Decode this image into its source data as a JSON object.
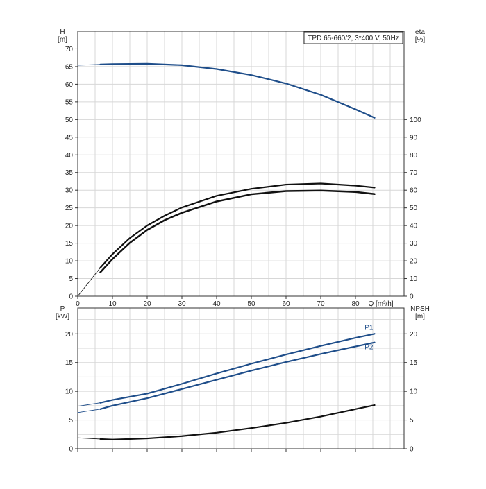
{
  "chart_data": [
    {
      "type": "line",
      "title": "TPD 65-660/2, 3*400 V, 50Hz",
      "xlabel": "Q [m³/h]",
      "x_ticks": [
        0,
        10,
        20,
        30,
        40,
        50,
        60,
        70,
        80
      ],
      "xlim": [
        0,
        94
      ],
      "left_axis": {
        "label_line1": "H",
        "label_line2": "[m]",
        "ylim": [
          0,
          75
        ],
        "ticks": [
          0,
          5,
          10,
          15,
          20,
          25,
          30,
          35,
          40,
          45,
          50,
          55,
          60,
          65,
          70
        ]
      },
      "right_axis": {
        "label_line1": "eta",
        "label_line2": "[%]",
        "ylim": [
          0,
          150
        ],
        "ticks": [
          0,
          10,
          20,
          30,
          40,
          50,
          60,
          70,
          80,
          90,
          100
        ]
      },
      "grid": true,
      "series": [
        {
          "axis": "left",
          "color": "#1f4e8a",
          "dashed_extension": true,
          "x": [
            0,
            6.5,
            10,
            20,
            30,
            40,
            50,
            60,
            70,
            80,
            85.5
          ],
          "y": [
            65.4,
            65.6,
            65.7,
            65.8,
            65.4,
            64.3,
            62.6,
            60.2,
            57.0,
            52.9,
            50.5
          ]
        },
        {
          "axis": "right",
          "color": "#111111",
          "dashed_extension": true,
          "x": [
            0,
            6.5,
            10,
            15,
            20,
            25,
            30,
            40,
            50,
            60,
            70,
            80,
            85.5
          ],
          "y": [
            0,
            16.1,
            23.8,
            32.9,
            40.0,
            45.5,
            50.2,
            56.8,
            60.8,
            63.2,
            63.8,
            62.6,
            61.5
          ]
        },
        {
          "axis": "right",
          "color": "#111111",
          "dashed_extension": false,
          "width": 2.5,
          "x": [
            6.5,
            10,
            15,
            20,
            25,
            30,
            40,
            50,
            60,
            70,
            80,
            85.5
          ],
          "y": [
            13.5,
            21.0,
            30.2,
            37.5,
            43.0,
            47.2,
            53.6,
            57.7,
            59.5,
            59.8,
            59.0,
            57.8
          ]
        }
      ]
    },
    {
      "type": "line",
      "xlim": [
        0,
        94
      ],
      "x_ticks": [
        0,
        10,
        20,
        30,
        40,
        50,
        60,
        70,
        80
      ],
      "left_axis": {
        "label_line1": "P",
        "label_line2": "[kW]",
        "ylim": [
          0,
          24.5
        ],
        "ticks": [
          0,
          5,
          10,
          15,
          20
        ]
      },
      "right_axis": {
        "label_line1": "NPSH",
        "label_line2": "[m]",
        "ylim": [
          0,
          24.5
        ],
        "ticks": [
          0,
          5,
          10,
          15,
          20
        ]
      },
      "grid": true,
      "series": [
        {
          "name": "P1",
          "axis": "left",
          "color": "#1f4e8a",
          "dashed_extension": true,
          "x": [
            0,
            6.5,
            10,
            20,
            30,
            40,
            50,
            60,
            70,
            80,
            85.5
          ],
          "y": [
            7.4,
            8.0,
            8.5,
            9.6,
            11.3,
            13.1,
            14.8,
            16.4,
            17.9,
            19.3,
            20.0
          ]
        },
        {
          "name": "P2",
          "axis": "left",
          "color": "#1f4e8a",
          "dashed_extension": true,
          "x": [
            0,
            6.5,
            10,
            20,
            30,
            40,
            50,
            60,
            70,
            80,
            85.5
          ],
          "y": [
            6.3,
            6.9,
            7.5,
            8.8,
            10.4,
            12.0,
            13.6,
            15.1,
            16.5,
            17.8,
            18.5
          ]
        },
        {
          "axis": "right",
          "color": "#111111",
          "dashed_extension": true,
          "x": [
            0,
            6.5,
            10,
            20,
            30,
            40,
            50,
            60,
            70,
            80,
            85.5
          ],
          "y": [
            1.9,
            1.7,
            1.6,
            1.8,
            2.2,
            2.8,
            3.6,
            4.5,
            5.6,
            6.9,
            7.6
          ]
        }
      ]
    }
  ]
}
